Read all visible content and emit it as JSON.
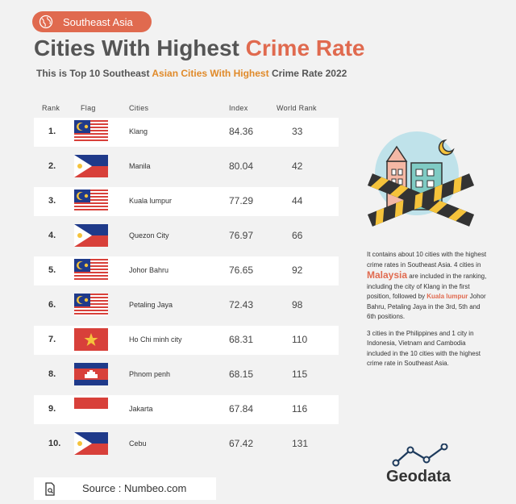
{
  "header": {
    "badge": "Southeast Asia",
    "title_part1": "Cities With Highest ",
    "title_part2": "Crime Rate",
    "subtitle_part1": "This is Top 10 Southeast ",
    "subtitle_part2": "Asian Cities With Highest",
    "subtitle_part3": " Crime Rate 2022"
  },
  "columns": {
    "rank": "Rank",
    "flag": "Flag",
    "cities": "Cities",
    "index": "Index",
    "world_rank": "World Rank"
  },
  "chart_data": {
    "type": "table",
    "title": "Cities With Highest Crime Rate",
    "columns": [
      "Rank",
      "Flag",
      "Cities",
      "Index",
      "World Rank"
    ],
    "rows": [
      {
        "rank": "1.",
        "flag": "malaysia",
        "city": "Klang",
        "index": "84.36",
        "world_rank": "33"
      },
      {
        "rank": "2.",
        "flag": "philippines",
        "city": "Manila",
        "index": "80.04",
        "world_rank": "42"
      },
      {
        "rank": "3.",
        "flag": "malaysia",
        "city": "Kuala lumpur",
        "index": "77.29",
        "world_rank": "44"
      },
      {
        "rank": "4.",
        "flag": "philippines",
        "city": "Quezon City",
        "index": "76.97",
        "world_rank": "66"
      },
      {
        "rank": "5.",
        "flag": "malaysia",
        "city": "Johor Bahru",
        "index": "76.65",
        "world_rank": "92"
      },
      {
        "rank": "6.",
        "flag": "malaysia",
        "city": "Petaling Jaya",
        "index": "72.43",
        "world_rank": "98"
      },
      {
        "rank": "7.",
        "flag": "vietnam",
        "city": "Ho Chi minh city",
        "index": "68.31",
        "world_rank": "110"
      },
      {
        "rank": "8.",
        "flag": "cambodia",
        "city": "Phnom penh",
        "index": "68.15",
        "world_rank": "115"
      },
      {
        "rank": "9.",
        "flag": "indonesia",
        "city": "Jakarta",
        "index": "67.84",
        "world_rank": "116"
      },
      {
        "rank": "10.",
        "flag": "philippines",
        "city": "Cebu",
        "index": "67.42",
        "world_rank": "131"
      }
    ]
  },
  "description": {
    "p1_a": "It contains about 10 cities with the highest crime rates in Southeast Asia. 4 cities in ",
    "p1_malaysia": "Malaysia",
    "p1_b": " are included in the ranking, including the city of Klang in the first position, followed by ",
    "p1_kl": "Kuala lumpur",
    "p1_c": " Johor Bahru, Petaling Jaya in the 3rd, 5th and 6th positions.",
    "p2": "3 cities in the Philippines and 1 city in Indonesia, Vietnam and Cambodia included in the 10 cities with the highest crime rate in Southeast Asia."
  },
  "footer": {
    "source": "Source : Numbeo.com",
    "brand": "Geodata"
  },
  "colors": {
    "accent": "#e06a4f",
    "orange": "#e08a2a",
    "stripe": "#ffffff",
    "background": "#f2f2f2"
  },
  "icons": {
    "badge": "globe-icon",
    "source": "document-icon",
    "brand": "chart-line-icon"
  }
}
